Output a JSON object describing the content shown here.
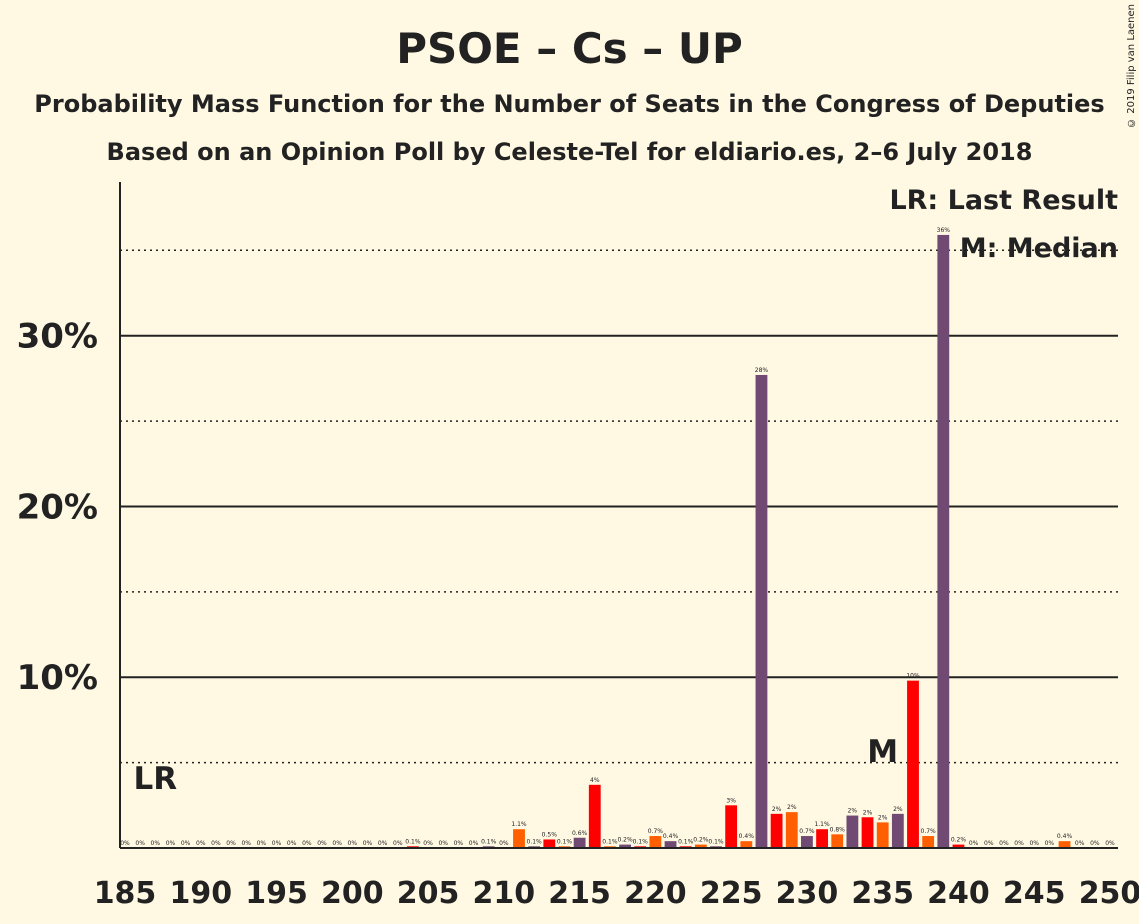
{
  "header": {
    "title": "PSOE – Cs – UP",
    "subtitle": "Probability Mass Function for the Number of Seats in the Congress of Deputies",
    "subtitle2": "Based on an Opinion Poll by Celeste-Tel for eldiario.es, 2–6 July 2018",
    "copyright": "© 2019 Filip van Laenen"
  },
  "legend": {
    "lr": "LR: Last Result",
    "m": "M: Median"
  },
  "markers": {
    "lr_label": "LR",
    "lr_seat": 187,
    "m_label": "M",
    "m_seat": 235
  },
  "colors": {
    "background": "#FFF8E3",
    "purple": "#714A73",
    "red": "#FF0000",
    "orange": "#FF5F00"
  },
  "chart_data": {
    "type": "bar",
    "x_range": [
      185,
      250
    ],
    "x_ticks": [
      185,
      190,
      195,
      200,
      205,
      210,
      215,
      220,
      225,
      230,
      235,
      240,
      245,
      250
    ],
    "y_range": [
      0,
      39
    ],
    "y_ticks_solid": [
      10,
      20,
      30
    ],
    "y_ticks_dotted": [
      5,
      15,
      25,
      35
    ],
    "y_tick_labels": [
      "10%",
      "20%",
      "30%"
    ],
    "bars": [
      {
        "seat": 185,
        "value": 0.0,
        "label": "0%",
        "color": "purple"
      },
      {
        "seat": 186,
        "value": 0.0,
        "label": "0%",
        "color": "red"
      },
      {
        "seat": 187,
        "value": 0.0,
        "label": "0%",
        "color": "orange"
      },
      {
        "seat": 188,
        "value": 0.0,
        "label": "0%",
        "color": "purple"
      },
      {
        "seat": 189,
        "value": 0.0,
        "label": "0%",
        "color": "red"
      },
      {
        "seat": 190,
        "value": 0.0,
        "label": "0%",
        "color": "orange"
      },
      {
        "seat": 191,
        "value": 0.0,
        "label": "0%",
        "color": "purple"
      },
      {
        "seat": 192,
        "value": 0.0,
        "label": "0%",
        "color": "red"
      },
      {
        "seat": 193,
        "value": 0.0,
        "label": "0%",
        "color": "orange"
      },
      {
        "seat": 194,
        "value": 0.0,
        "label": "0%",
        "color": "purple"
      },
      {
        "seat": 195,
        "value": 0.0,
        "label": "0%",
        "color": "red"
      },
      {
        "seat": 196,
        "value": 0.0,
        "label": "0%",
        "color": "orange"
      },
      {
        "seat": 197,
        "value": 0.0,
        "label": "0%",
        "color": "purple"
      },
      {
        "seat": 198,
        "value": 0.0,
        "label": "0%",
        "color": "red"
      },
      {
        "seat": 199,
        "value": 0.0,
        "label": "0%",
        "color": "orange"
      },
      {
        "seat": 200,
        "value": 0.0,
        "label": "0%",
        "color": "purple"
      },
      {
        "seat": 201,
        "value": 0.0,
        "label": "0%",
        "color": "red"
      },
      {
        "seat": 202,
        "value": 0.0,
        "label": "0%",
        "color": "orange"
      },
      {
        "seat": 203,
        "value": 0.0,
        "label": "0%",
        "color": "purple"
      },
      {
        "seat": 204,
        "value": 0.1,
        "label": "0.1%",
        "color": "red"
      },
      {
        "seat": 205,
        "value": 0.0,
        "label": "0%",
        "color": "orange"
      },
      {
        "seat": 206,
        "value": 0.0,
        "label": "0%",
        "color": "purple"
      },
      {
        "seat": 207,
        "value": 0.0,
        "label": "0%",
        "color": "red"
      },
      {
        "seat": 208,
        "value": 0.0,
        "label": "0%",
        "color": "orange"
      },
      {
        "seat": 209,
        "value": 0.1,
        "label": "0.1%",
        "color": "purple"
      },
      {
        "seat": 210,
        "value": 0.0,
        "label": "0%",
        "color": "red"
      },
      {
        "seat": 211,
        "value": 1.1,
        "label": "1.1%",
        "color": "orange"
      },
      {
        "seat": 212,
        "value": 0.1,
        "label": "0.1%",
        "color": "purple"
      },
      {
        "seat": 213,
        "value": 0.5,
        "label": "0.5%",
        "color": "red"
      },
      {
        "seat": 214,
        "value": 0.1,
        "label": "0.1%",
        "color": "orange"
      },
      {
        "seat": 215,
        "value": 0.6,
        "label": "0.6%",
        "color": "purple"
      },
      {
        "seat": 216,
        "value": 3.7,
        "label": "4%",
        "color": "red"
      },
      {
        "seat": 217,
        "value": 0.1,
        "label": "0.1%",
        "color": "orange"
      },
      {
        "seat": 218,
        "value": 0.2,
        "label": "0.2%",
        "color": "purple"
      },
      {
        "seat": 219,
        "value": 0.1,
        "label": "0.1%",
        "color": "red"
      },
      {
        "seat": 220,
        "value": 0.7,
        "label": "0.7%",
        "color": "orange"
      },
      {
        "seat": 221,
        "value": 0.4,
        "label": "0.4%",
        "color": "purple"
      },
      {
        "seat": 222,
        "value": 0.1,
        "label": "0.1%",
        "color": "red"
      },
      {
        "seat": 223,
        "value": 0.2,
        "label": "0.2%",
        "color": "orange"
      },
      {
        "seat": 224,
        "value": 0.1,
        "label": "0.1%",
        "color": "purple"
      },
      {
        "seat": 225,
        "value": 2.5,
        "label": "3%",
        "color": "red"
      },
      {
        "seat": 226,
        "value": 0.4,
        "label": "0.4%",
        "color": "orange"
      },
      {
        "seat": 227,
        "value": 27.7,
        "label": "28%",
        "color": "purple"
      },
      {
        "seat": 228,
        "value": 2.0,
        "label": "2%",
        "color": "red"
      },
      {
        "seat": 229,
        "value": 2.1,
        "label": "2%",
        "color": "orange"
      },
      {
        "seat": 230,
        "value": 0.7,
        "label": "0.7%",
        "color": "purple"
      },
      {
        "seat": 231,
        "value": 1.1,
        "label": "1.1%",
        "color": "red"
      },
      {
        "seat": 232,
        "value": 0.8,
        "label": "0.8%",
        "color": "orange"
      },
      {
        "seat": 233,
        "value": 1.9,
        "label": "2%",
        "color": "purple"
      },
      {
        "seat": 234,
        "value": 1.8,
        "label": "2%",
        "color": "red"
      },
      {
        "seat": 235,
        "value": 1.5,
        "label": "2%",
        "color": "orange"
      },
      {
        "seat": 236,
        "value": 2.0,
        "label": "2%",
        "color": "purple"
      },
      {
        "seat": 237,
        "value": 9.8,
        "label": "10%",
        "color": "red"
      },
      {
        "seat": 238,
        "value": 0.7,
        "label": "0.7%",
        "color": "orange"
      },
      {
        "seat": 239,
        "value": 35.9,
        "label": "36%",
        "color": "purple"
      },
      {
        "seat": 240,
        "value": 0.2,
        "label": "0.2%",
        "color": "red"
      },
      {
        "seat": 241,
        "value": 0.0,
        "label": "0%",
        "color": "orange"
      },
      {
        "seat": 242,
        "value": 0.0,
        "label": "0%",
        "color": "purple"
      },
      {
        "seat": 243,
        "value": 0.0,
        "label": "0%",
        "color": "red"
      },
      {
        "seat": 244,
        "value": 0.0,
        "label": "0%",
        "color": "orange"
      },
      {
        "seat": 245,
        "value": 0.0,
        "label": "0%",
        "color": "purple"
      },
      {
        "seat": 246,
        "value": 0.0,
        "label": "0%",
        "color": "red"
      },
      {
        "seat": 247,
        "value": 0.4,
        "label": "0.4%",
        "color": "orange"
      },
      {
        "seat": 248,
        "value": 0.0,
        "label": "0%",
        "color": "purple"
      },
      {
        "seat": 249,
        "value": 0.0,
        "label": "0%",
        "color": "red"
      },
      {
        "seat": 250,
        "value": 0.0,
        "label": "0%",
        "color": "orange"
      }
    ]
  }
}
